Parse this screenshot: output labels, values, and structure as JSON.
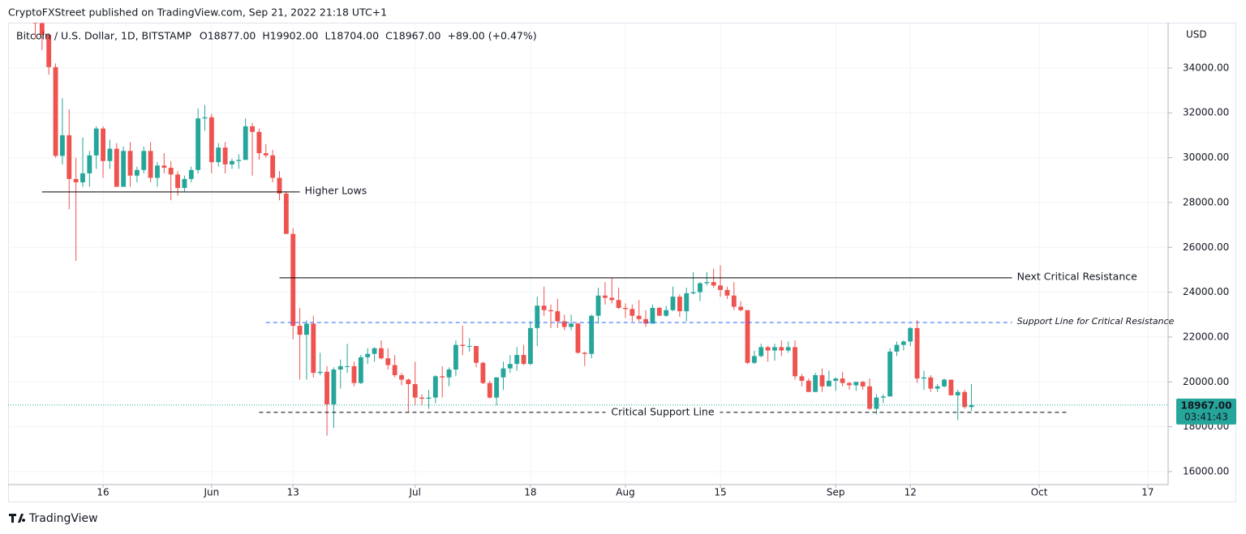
{
  "header": "CryptoFXStreet published on TradingView.com, Sep 21, 2022 21:18 UTC+1",
  "footer": "TradingView",
  "chart_data": {
    "type": "candlestick",
    "symbol": "Bitcoin / U.S. Dollar, 1D, BITSTAMP",
    "legend_values": [
      {
        "key": "O",
        "value": "18877.00"
      },
      {
        "key": "H",
        "value": "19902.00"
      },
      {
        "key": "L",
        "value": "18704.00"
      },
      {
        "key": "C",
        "value": "18967.00"
      }
    ],
    "change": "+89.00 (+0.47%)",
    "currency": "USD",
    "up_color": "#26a69a",
    "down_color": "#ef5350",
    "x": [
      "2022-05-06",
      "2022-05-07",
      "2022-05-08",
      "2022-05-09",
      "2022-05-10",
      "2022-05-11",
      "2022-05-12",
      "2022-05-13",
      "2022-05-14",
      "2022-05-15",
      "2022-05-16",
      "2022-05-17",
      "2022-05-18",
      "2022-05-19",
      "2022-05-20",
      "2022-05-21",
      "2022-05-22",
      "2022-05-23",
      "2022-05-24",
      "2022-05-25",
      "2022-05-26",
      "2022-05-27",
      "2022-05-28",
      "2022-05-29",
      "2022-05-30",
      "2022-05-31",
      "2022-06-01",
      "2022-06-02",
      "2022-06-03",
      "2022-06-04",
      "2022-06-05",
      "2022-06-06",
      "2022-06-07",
      "2022-06-08",
      "2022-06-09",
      "2022-06-10",
      "2022-06-11",
      "2022-06-12",
      "2022-06-13",
      "2022-06-14",
      "2022-06-15",
      "2022-06-16",
      "2022-06-17",
      "2022-06-18",
      "2022-06-19",
      "2022-06-20",
      "2022-06-21",
      "2022-06-22",
      "2022-06-23",
      "2022-06-24",
      "2022-06-25",
      "2022-06-26",
      "2022-06-27",
      "2022-06-28",
      "2022-06-29",
      "2022-06-30",
      "2022-07-01",
      "2022-07-02",
      "2022-07-03",
      "2022-07-04",
      "2022-07-05",
      "2022-07-06",
      "2022-07-07",
      "2022-07-08",
      "2022-07-09",
      "2022-07-10",
      "2022-07-11",
      "2022-07-12",
      "2022-07-13",
      "2022-07-14",
      "2022-07-15",
      "2022-07-16",
      "2022-07-17",
      "2022-07-18",
      "2022-07-19",
      "2022-07-20",
      "2022-07-21",
      "2022-07-22",
      "2022-07-23",
      "2022-07-24",
      "2022-07-25",
      "2022-07-26",
      "2022-07-27",
      "2022-07-28",
      "2022-07-29",
      "2022-07-30",
      "2022-07-31",
      "2022-08-01",
      "2022-08-02",
      "2022-08-03",
      "2022-08-04",
      "2022-08-05",
      "2022-08-06",
      "2022-08-07",
      "2022-08-08",
      "2022-08-09",
      "2022-08-10",
      "2022-08-11",
      "2022-08-12",
      "2022-08-13",
      "2022-08-14",
      "2022-08-15",
      "2022-08-16",
      "2022-08-17",
      "2022-08-18",
      "2022-08-19",
      "2022-08-20",
      "2022-08-21",
      "2022-08-22",
      "2022-08-23",
      "2022-08-24",
      "2022-08-25",
      "2022-08-26",
      "2022-08-27",
      "2022-08-28",
      "2022-08-29",
      "2022-08-30",
      "2022-08-31",
      "2022-09-01",
      "2022-09-02",
      "2022-09-03",
      "2022-09-04",
      "2022-09-05",
      "2022-09-06",
      "2022-09-07",
      "2022-09-08",
      "2022-09-09",
      "2022-09-10",
      "2022-09-11",
      "2022-09-12",
      "2022-09-13",
      "2022-09-14",
      "2022-09-15",
      "2022-09-16",
      "2022-09-17",
      "2022-09-18",
      "2022-09-19",
      "2022-09-20",
      "2022-09-21"
    ],
    "open": [
      36500,
      36000,
      35480,
      34040,
      30080,
      31000,
      29050,
      28900,
      29300,
      30100,
      31300,
      29850,
      30400,
      28700,
      30300,
      29200,
      29450,
      30300,
      29100,
      29650,
      29550,
      29250,
      28650,
      29050,
      29450,
      31750,
      31800,
      29800,
      30450,
      29700,
      29850,
      29900,
      31400,
      31150,
      30200,
      30100,
      29100,
      28400,
      26600,
      22500,
      22100,
      22600,
      20400,
      20450,
      19000,
      20550,
      20700,
      20700,
      19950,
      21100,
      21250,
      21500,
      21050,
      20750,
      20300,
      20100,
      19900,
      19300,
      19250,
      19300,
      20250,
      20200,
      20550,
      21650,
      21600,
      21600,
      20850,
      19950,
      19300,
      20200,
      20600,
      20800,
      21200,
      20800,
      22400,
      23400,
      23200,
      23150,
      22700,
      22450,
      22600,
      21300,
      21250,
      22950,
      23850,
      23750,
      23650,
      23300,
      23250,
      22950,
      22800,
      22600,
      23300,
      22950,
      23200,
      23800,
      23150,
      23950,
      24000,
      24400,
      24450,
      24300,
      24100,
      23850,
      23350,
      23200,
      20850,
      21150,
      21550,
      21400,
      21550,
      21400,
      21550,
      20250,
      20050,
      19550,
      20300,
      19800,
      20050,
      20150,
      19950,
      19850,
      20000,
      19800,
      18800,
      19300,
      19350,
      21350,
      21650,
      21800,
      22400,
      20150,
      20200,
      19700,
      19800,
      20100,
      19400,
      19550,
      18877
    ],
    "high": [
      36650,
      36100,
      35500,
      34200,
      32650,
      32150,
      30000,
      30900,
      30300,
      31400,
      31400,
      30800,
      30650,
      30500,
      30700,
      29600,
      30500,
      30700,
      29800,
      30200,
      29850,
      29400,
      29200,
      29600,
      32200,
      32350,
      31950,
      30650,
      30700,
      29950,
      30150,
      31750,
      31550,
      31300,
      30600,
      30350,
      29400,
      28500,
      26850,
      23300,
      22750,
      22950,
      21300,
      20700,
      20650,
      21000,
      21700,
      20900,
      21200,
      21500,
      21550,
      21850,
      21500,
      21200,
      20400,
      20150,
      20900,
      19450,
      19650,
      20300,
      20700,
      20650,
      21850,
      22500,
      21950,
      21600,
      20900,
      20050,
      20200,
      20900,
      21200,
      21550,
      21650,
      22700,
      23800,
      24250,
      23450,
      23700,
      23000,
      23000,
      22650,
      21350,
      23000,
      24200,
      24450,
      24650,
      24200,
      23500,
      23450,
      23650,
      23200,
      23450,
      23350,
      23400,
      24250,
      23900,
      24200,
      24900,
      24450,
      24900,
      25050,
      25200,
      24250,
      24450,
      23600,
      23200,
      21400,
      21700,
      21600,
      21700,
      21850,
      21800,
      21850,
      20350,
      20150,
      20400,
      20600,
      20500,
      20200,
      20450,
      20000,
      20000,
      20050,
      20150,
      19450,
      19450,
      21500,
      21800,
      21850,
      22450,
      22750,
      20500,
      20300,
      19900,
      20150,
      20100,
      19650,
      19650,
      19902
    ],
    "low": [
      35300,
      34800,
      33700,
      30000,
      29700,
      27700,
      25400,
      28700,
      28700,
      29500,
      29100,
      29500,
      28700,
      28700,
      28700,
      28900,
      29300,
      28900,
      28700,
      29300,
      28100,
      28300,
      28500,
      28900,
      29300,
      31200,
      29300,
      29600,
      29300,
      29500,
      29500,
      29900,
      29200,
      29900,
      30000,
      28900,
      28100,
      26600,
      21900,
      20100,
      20100,
      20200,
      20300,
      17600,
      17950,
      19700,
      20400,
      19800,
      19900,
      20800,
      20900,
      21000,
      20550,
      20200,
      19850,
      18650,
      18950,
      18950,
      18800,
      19050,
      19300,
      19800,
      20250,
      21200,
      21350,
      20650,
      19900,
      19250,
      18950,
      19650,
      20400,
      20500,
      20750,
      20750,
      21600,
      22950,
      22400,
      22400,
      22300,
      22300,
      21250,
      20700,
      21050,
      22600,
      23450,
      23500,
      23250,
      22850,
      22700,
      22700,
      22450,
      22600,
      22950,
      22900,
      23150,
      22900,
      22700,
      23900,
      23600,
      24300,
      24200,
      23800,
      23700,
      23200,
      23150,
      20800,
      20800,
      21100,
      20900,
      20950,
      21150,
      21300,
      20100,
      19800,
      19550,
      19550,
      19550,
      19800,
      19600,
      19800,
      19650,
      19600,
      19650,
      18750,
      18550,
      19050,
      19350,
      21150,
      21400,
      21600,
      19950,
      19650,
      19550,
      19550,
      19750,
      19400,
      18300,
      18800,
      18704
    ],
    "close": [
      36000,
      35480,
      34040,
      30080,
      31000,
      29050,
      28900,
      29300,
      30100,
      31300,
      29850,
      30400,
      28700,
      30300,
      29200,
      29450,
      30300,
      29100,
      29650,
      29550,
      29250,
      28650,
      29050,
      29450,
      31750,
      31800,
      29800,
      30450,
      29700,
      29850,
      29900,
      31400,
      31150,
      30200,
      30100,
      29100,
      28400,
      26600,
      22500,
      22100,
      22600,
      20400,
      20450,
      19000,
      20550,
      20700,
      20700,
      19950,
      21100,
      21250,
      21500,
      21050,
      20750,
      20300,
      20100,
      19900,
      19300,
      19250,
      19300,
      20250,
      20200,
      20550,
      21650,
      21600,
      21600,
      20850,
      19950,
      19300,
      20200,
      20600,
      20800,
      21200,
      20800,
      22400,
      23400,
      23200,
      23150,
      22700,
      22450,
      22600,
      21300,
      21250,
      22950,
      23850,
      23750,
      23650,
      23300,
      23250,
      22950,
      22800,
      22600,
      23300,
      22950,
      23200,
      23800,
      23150,
      23950,
      24000,
      24400,
      24450,
      24300,
      24100,
      23850,
      23350,
      23200,
      20850,
      21150,
      21550,
      21400,
      21550,
      21400,
      21550,
      20250,
      20050,
      19550,
      20300,
      19800,
      20050,
      20150,
      19950,
      19850,
      20000,
      19800,
      18800,
      19300,
      19350,
      21350,
      21650,
      21800,
      22400,
      20150,
      20200,
      19700,
      19800,
      20100,
      19400,
      19550,
      18877,
      18967
    ],
    "xlim": [
      "2022-05-02",
      "2022-10-20"
    ],
    "ylim": [
      15420,
      36020
    ],
    "yticks": [
      {
        "value": 16000,
        "label": "16000.00"
      },
      {
        "value": 18000,
        "label": "18000.00"
      },
      {
        "value": 20000,
        "label": "20000.00"
      },
      {
        "value": 22000,
        "label": "22000.00"
      },
      {
        "value": 24000,
        "label": "24000.00"
      },
      {
        "value": 26000,
        "label": "26000.00"
      },
      {
        "value": 28000,
        "label": "28000.00"
      },
      {
        "value": 30000,
        "label": "30000.00"
      },
      {
        "value": 32000,
        "label": "32000.00"
      },
      {
        "value": 34000,
        "label": "34000.00"
      }
    ],
    "xticks": [
      {
        "value": "2022-05-16",
        "label": "16"
      },
      {
        "value": "2022-06-01",
        "label": "Jun"
      },
      {
        "value": "2022-06-13",
        "label": "13"
      },
      {
        "value": "2022-07-01",
        "label": "Jul"
      },
      {
        "value": "2022-07-18",
        "label": "18"
      },
      {
        "value": "2022-08-01",
        "label": "Aug"
      },
      {
        "value": "2022-08-15",
        "label": "15"
      },
      {
        "value": "2022-09-01",
        "label": "Sep"
      },
      {
        "value": "2022-09-12",
        "label": "12"
      },
      {
        "value": "2022-10-01",
        "label": "Oct"
      },
      {
        "value": "2022-10-17",
        "label": "17"
      }
    ],
    "grid": true,
    "last_price": {
      "value": 18967,
      "label": "18967.00"
    },
    "countdown": "03:41:43",
    "annotations": [
      {
        "text": "Higher Lows",
        "y": 28470,
        "x": [
          "2022-05-07",
          "2022-06-14"
        ],
        "style": "solid",
        "color": "#000000",
        "label_position": "end"
      },
      {
        "text": "Next Critical Resistance",
        "y": 24640,
        "x": [
          "2022-06-11",
          "2022-09-27"
        ],
        "style": "solid",
        "color": "#000000",
        "label_position": "end"
      },
      {
        "text": "Support Line for Critical Resistance",
        "y": 22650,
        "x": [
          "2022-06-09",
          "2022-09-27"
        ],
        "style": "dashed",
        "color": "#2962ff",
        "label_position": "end"
      },
      {
        "text": "Critical Support Line",
        "y": 18640,
        "x": [
          "2022-06-08",
          "2022-10-05"
        ],
        "style": "dashed",
        "color": "#000000",
        "label_position": "center"
      }
    ]
  }
}
